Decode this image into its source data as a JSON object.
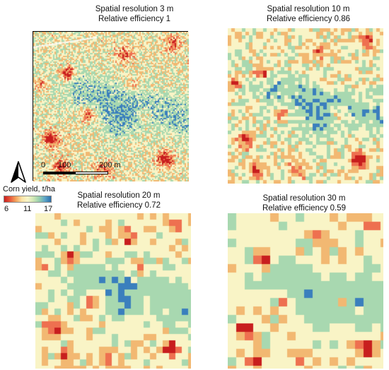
{
  "panels": [
    {
      "title_line1": "Spatial resolution 3 m",
      "title_line2": "Relative efficiency 1",
      "resolution_m": 3,
      "relative_efficiency": 1
    },
    {
      "title_line1": "Spatial resolution 10 m",
      "title_line2": "Relative efficiency 0.86",
      "resolution_m": 10,
      "relative_efficiency": 0.86
    },
    {
      "title_line1": "Spatial resolution 20 m",
      "title_line2": "Relative efficiency 0.72",
      "resolution_m": 20,
      "relative_efficiency": 0.72
    },
    {
      "title_line1": "Spatial resolution 30 m",
      "title_line2": "Relative efficiency 0.59",
      "resolution_m": 30,
      "relative_efficiency": 0.59
    }
  ],
  "scale_bar": {
    "labels": [
      "0",
      "100",
      "200 m"
    ]
  },
  "north_arrow": {
    "icon": "north-arrow-icon"
  },
  "legend": {
    "title": "Corn yield, t/ha",
    "min": "6",
    "mid": "11",
    "max": "17",
    "colors": [
      "#c81e1e",
      "#e8573a",
      "#f3a35c",
      "#fbe3a6",
      "#f8f5c8",
      "#cfe7b4",
      "#96ceae",
      "#5ba3c8",
      "#2b6ca8"
    ]
  },
  "palette": {
    "very_low": "#c81e1e",
    "low": "#ee7050",
    "mid_low": "#f2b872",
    "average": "#f9f4c6",
    "high": "#a8d8b0",
    "very_high": "#3a7fbd"
  }
}
